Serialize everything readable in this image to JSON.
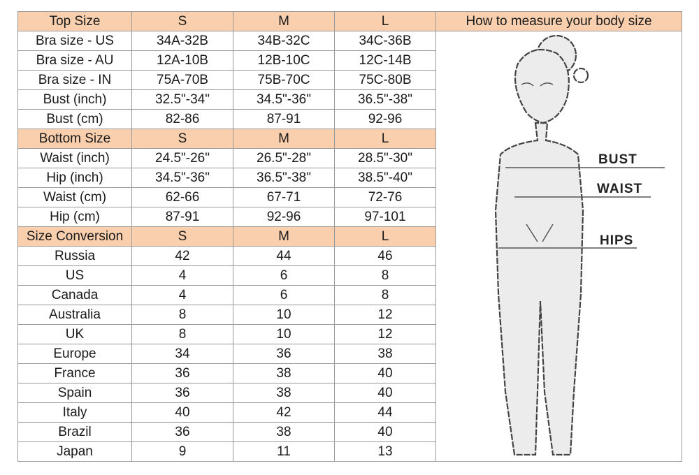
{
  "measure_title": "How to measure your body size",
  "colors": {
    "header_bg": "#f9cfae",
    "border": "#9a9a9a"
  },
  "figure_labels": {
    "bust": "BUST",
    "waist": "WAIST",
    "hips": "HIPS"
  },
  "sections": [
    {
      "header": [
        "Top Size",
        "S",
        "M",
        "L"
      ],
      "rows": [
        [
          "Bra size - US",
          "34A-32B",
          "34B-32C",
          "34C-36B"
        ],
        [
          "Bra size - AU",
          "12A-10B",
          "12B-10C",
          "12C-14B"
        ],
        [
          "Bra size - IN",
          "75A-70B",
          "75B-70C",
          "75C-80B"
        ],
        [
          "Bust (inch)",
          "32.5\"-34\"",
          "34.5\"-36\"",
          "36.5\"-38\""
        ],
        [
          "Bust (cm)",
          "82-86",
          "87-91",
          "92-96"
        ]
      ]
    },
    {
      "header": [
        "Bottom Size",
        "S",
        "M",
        "L"
      ],
      "rows": [
        [
          "Waist (inch)",
          "24.5\"-26\"",
          "26.5\"-28\"",
          "28.5\"-30\""
        ],
        [
          "Hip (inch)",
          "34.5\"-36\"",
          "36.5\"-38\"",
          "38.5\"-40\""
        ],
        [
          "Waist (cm)",
          "62-66",
          "67-71",
          "72-76"
        ],
        [
          "Hip (cm)",
          "87-91",
          "92-96",
          "97-101"
        ]
      ]
    },
    {
      "header": [
        "Size Conversion",
        "S",
        "M",
        "L"
      ],
      "rows": [
        [
          "Russia",
          "42",
          "44",
          "46"
        ],
        [
          "US",
          "4",
          "6",
          "8"
        ],
        [
          "Canada",
          "4",
          "6",
          "8"
        ],
        [
          "Australia",
          "8",
          "10",
          "12"
        ],
        [
          "UK",
          "8",
          "10",
          "12"
        ],
        [
          "Europe",
          "34",
          "36",
          "38"
        ],
        [
          "France",
          "36",
          "38",
          "40"
        ],
        [
          "Spain",
          "36",
          "38",
          "40"
        ],
        [
          "Italy",
          "40",
          "42",
          "44"
        ],
        [
          "Brazil",
          "36",
          "38",
          "40"
        ],
        [
          "Japan",
          "9",
          "11",
          "13"
        ]
      ]
    }
  ]
}
